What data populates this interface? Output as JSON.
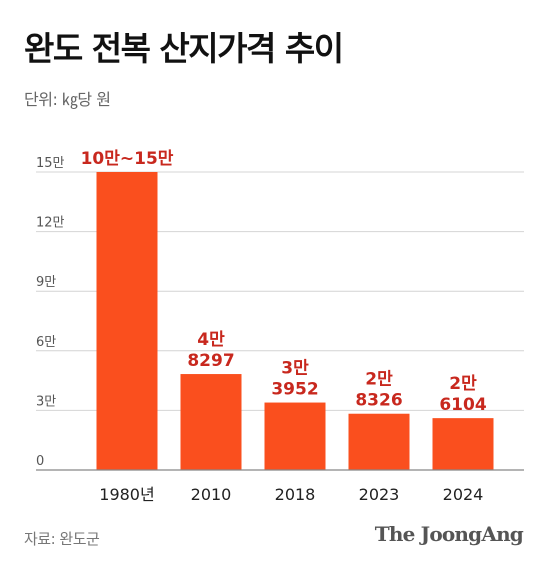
{
  "header": {
    "title": "완도 전복 산지가격 추이",
    "unit": "단위: ㎏당 원"
  },
  "footer": {
    "source": "자료: 완도군",
    "brand": "The JoongAng"
  },
  "colors": {
    "bar": "#fa4f1e",
    "value_label": "#c8281e",
    "grid": "#d4d4d4",
    "axis": "#888888",
    "tick_label": "#555555",
    "category_label": "#222222"
  },
  "chart_data": {
    "type": "bar",
    "title": "완도 전복 산지가격 추이",
    "ylabel": "단위: ㎏당 원",
    "xlabel": "",
    "categories": [
      "1980년",
      "2010",
      "2018",
      "2023",
      "2024"
    ],
    "values": [
      150000,
      48297,
      33952,
      28326,
      26104
    ],
    "value_labels": [
      [
        "10만~15만"
      ],
      [
        "4만",
        "8297"
      ],
      [
        "3만",
        "3952"
      ],
      [
        "2만",
        "8326"
      ],
      [
        "2만",
        "6104"
      ]
    ],
    "ylim": [
      0,
      150000
    ],
    "yticks": [
      0,
      30000,
      60000,
      90000,
      120000,
      150000
    ],
    "ytick_labels": [
      "0",
      "3만",
      "6만",
      "9만",
      "12만",
      "15만"
    ],
    "grid": true,
    "legend": "none"
  }
}
